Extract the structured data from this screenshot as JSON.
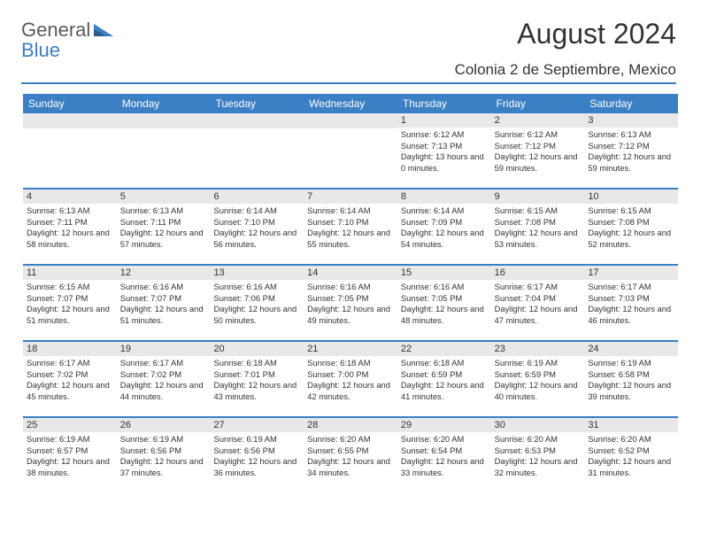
{
  "logo": {
    "text1": "General",
    "text2": "Blue"
  },
  "header": {
    "month_title": "August 2024",
    "location": "Colonia 2 de Septiembre, Mexico"
  },
  "colors": {
    "brand_blue": "#3b7fc4",
    "header_gray": "#e8e8e8",
    "text": "#333333",
    "logo_gray": "#5a5a5a",
    "white": "#ffffff"
  },
  "weekdays": [
    "Sunday",
    "Monday",
    "Tuesday",
    "Wednesday",
    "Thursday",
    "Friday",
    "Saturday"
  ],
  "weeks": [
    [
      {
        "day": "",
        "lines": []
      },
      {
        "day": "",
        "lines": []
      },
      {
        "day": "",
        "lines": []
      },
      {
        "day": "",
        "lines": []
      },
      {
        "day": "1",
        "lines": [
          "Sunrise: 6:12 AM",
          "Sunset: 7:13 PM",
          "Daylight: 13 hours and 0 minutes."
        ]
      },
      {
        "day": "2",
        "lines": [
          "Sunrise: 6:12 AM",
          "Sunset: 7:12 PM",
          "Daylight: 12 hours and 59 minutes."
        ]
      },
      {
        "day": "3",
        "lines": [
          "Sunrise: 6:13 AM",
          "Sunset: 7:12 PM",
          "Daylight: 12 hours and 59 minutes."
        ]
      }
    ],
    [
      {
        "day": "4",
        "lines": [
          "Sunrise: 6:13 AM",
          "Sunset: 7:11 PM",
          "Daylight: 12 hours and 58 minutes."
        ]
      },
      {
        "day": "5",
        "lines": [
          "Sunrise: 6:13 AM",
          "Sunset: 7:11 PM",
          "Daylight: 12 hours and 57 minutes."
        ]
      },
      {
        "day": "6",
        "lines": [
          "Sunrise: 6:14 AM",
          "Sunset: 7:10 PM",
          "Daylight: 12 hours and 56 minutes."
        ]
      },
      {
        "day": "7",
        "lines": [
          "Sunrise: 6:14 AM",
          "Sunset: 7:10 PM",
          "Daylight: 12 hours and 55 minutes."
        ]
      },
      {
        "day": "8",
        "lines": [
          "Sunrise: 6:14 AM",
          "Sunset: 7:09 PM",
          "Daylight: 12 hours and 54 minutes."
        ]
      },
      {
        "day": "9",
        "lines": [
          "Sunrise: 6:15 AM",
          "Sunset: 7:08 PM",
          "Daylight: 12 hours and 53 minutes."
        ]
      },
      {
        "day": "10",
        "lines": [
          "Sunrise: 6:15 AM",
          "Sunset: 7:08 PM",
          "Daylight: 12 hours and 52 minutes."
        ]
      }
    ],
    [
      {
        "day": "11",
        "lines": [
          "Sunrise: 6:15 AM",
          "Sunset: 7:07 PM",
          "Daylight: 12 hours and 51 minutes."
        ]
      },
      {
        "day": "12",
        "lines": [
          "Sunrise: 6:16 AM",
          "Sunset: 7:07 PM",
          "Daylight: 12 hours and 51 minutes."
        ]
      },
      {
        "day": "13",
        "lines": [
          "Sunrise: 6:16 AM",
          "Sunset: 7:06 PM",
          "Daylight: 12 hours and 50 minutes."
        ]
      },
      {
        "day": "14",
        "lines": [
          "Sunrise: 6:16 AM",
          "Sunset: 7:05 PM",
          "Daylight: 12 hours and 49 minutes."
        ]
      },
      {
        "day": "15",
        "lines": [
          "Sunrise: 6:16 AM",
          "Sunset: 7:05 PM",
          "Daylight: 12 hours and 48 minutes."
        ]
      },
      {
        "day": "16",
        "lines": [
          "Sunrise: 6:17 AM",
          "Sunset: 7:04 PM",
          "Daylight: 12 hours and 47 minutes."
        ]
      },
      {
        "day": "17",
        "lines": [
          "Sunrise: 6:17 AM",
          "Sunset: 7:03 PM",
          "Daylight: 12 hours and 46 minutes."
        ]
      }
    ],
    [
      {
        "day": "18",
        "lines": [
          "Sunrise: 6:17 AM",
          "Sunset: 7:02 PM",
          "Daylight: 12 hours and 45 minutes."
        ]
      },
      {
        "day": "19",
        "lines": [
          "Sunrise: 6:17 AM",
          "Sunset: 7:02 PM",
          "Daylight: 12 hours and 44 minutes."
        ]
      },
      {
        "day": "20",
        "lines": [
          "Sunrise: 6:18 AM",
          "Sunset: 7:01 PM",
          "Daylight: 12 hours and 43 minutes."
        ]
      },
      {
        "day": "21",
        "lines": [
          "Sunrise: 6:18 AM",
          "Sunset: 7:00 PM",
          "Daylight: 12 hours and 42 minutes."
        ]
      },
      {
        "day": "22",
        "lines": [
          "Sunrise: 6:18 AM",
          "Sunset: 6:59 PM",
          "Daylight: 12 hours and 41 minutes."
        ]
      },
      {
        "day": "23",
        "lines": [
          "Sunrise: 6:19 AM",
          "Sunset: 6:59 PM",
          "Daylight: 12 hours and 40 minutes."
        ]
      },
      {
        "day": "24",
        "lines": [
          "Sunrise: 6:19 AM",
          "Sunset: 6:58 PM",
          "Daylight: 12 hours and 39 minutes."
        ]
      }
    ],
    [
      {
        "day": "25",
        "lines": [
          "Sunrise: 6:19 AM",
          "Sunset: 6:57 PM",
          "Daylight: 12 hours and 38 minutes."
        ]
      },
      {
        "day": "26",
        "lines": [
          "Sunrise: 6:19 AM",
          "Sunset: 6:56 PM",
          "Daylight: 12 hours and 37 minutes."
        ]
      },
      {
        "day": "27",
        "lines": [
          "Sunrise: 6:19 AM",
          "Sunset: 6:56 PM",
          "Daylight: 12 hours and 36 minutes."
        ]
      },
      {
        "day": "28",
        "lines": [
          "Sunrise: 6:20 AM",
          "Sunset: 6:55 PM",
          "Daylight: 12 hours and 34 minutes."
        ]
      },
      {
        "day": "29",
        "lines": [
          "Sunrise: 6:20 AM",
          "Sunset: 6:54 PM",
          "Daylight: 12 hours and 33 minutes."
        ]
      },
      {
        "day": "30",
        "lines": [
          "Sunrise: 6:20 AM",
          "Sunset: 6:53 PM",
          "Daylight: 12 hours and 32 minutes."
        ]
      },
      {
        "day": "31",
        "lines": [
          "Sunrise: 6:20 AM",
          "Sunset: 6:52 PM",
          "Daylight: 12 hours and 31 minutes."
        ]
      }
    ]
  ]
}
